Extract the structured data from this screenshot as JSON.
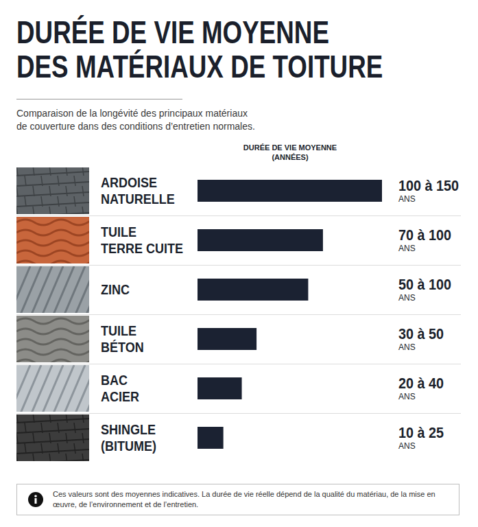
{
  "chart_data": {
    "type": "bar",
    "orientation": "horizontal",
    "title": "DURÉE DE VIE MOYENNE\nDES MATÉRIAUX DE TOITURE",
    "subtitle": "Comparaison de la longévité des principaux matériaux\nde couverture dans des conditions d’entretien normales.",
    "x_label": "DURÉE DE VIE MOYENNE\n(ANNÉES)",
    "categories": [
      "ARDOISE\nNATURELLE",
      "TUILE\nTERRE CUITE",
      "ZINC",
      "TUILE\nBÉTON",
      "BAC\nACIER",
      "SHINGLE\n(BITUME)"
    ],
    "values": [
      125,
      85,
      75,
      40,
      30,
      17.5
    ],
    "range_labels": [
      "100 à 150",
      "70 à 100",
      "50 à 100",
      "30 à 50",
      "20 à 40",
      "10 à 25"
    ],
    "unit": "ANS",
    "color": "#1b2232",
    "grid": false,
    "tick_labels": false,
    "note": "Ces valeurs sont des moyennes indicatives. La durée de vie réelle dépend de la qualité du matériau, de la mise en œuvre, de l’environnement et de l’entretien."
  }
}
